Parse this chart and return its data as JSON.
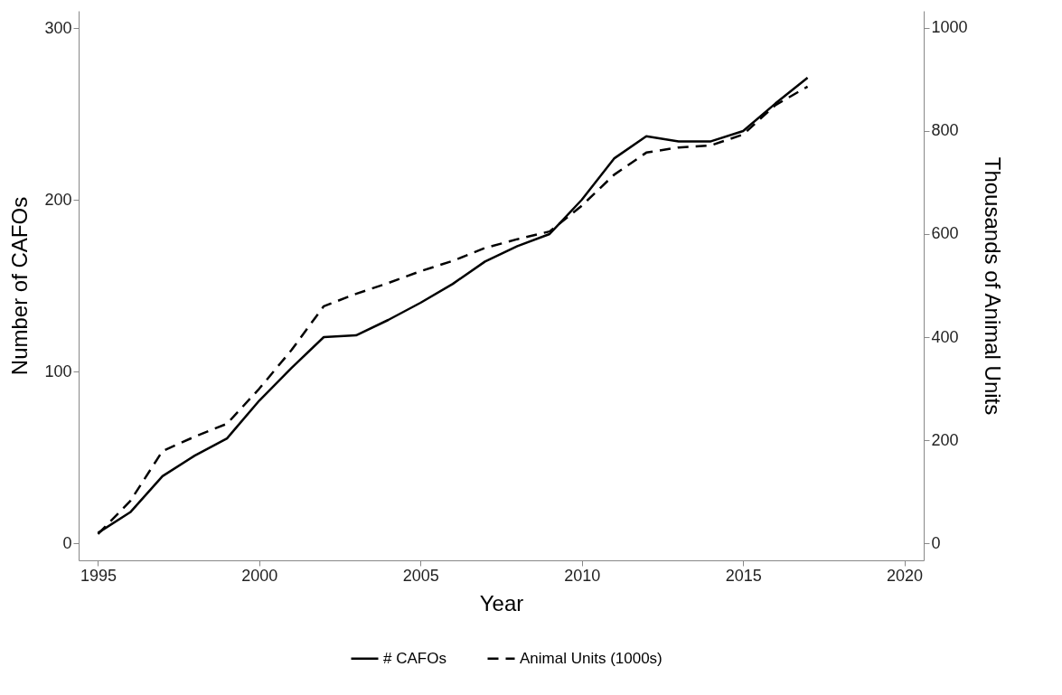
{
  "chart_data": {
    "type": "line",
    "xlabel": "Year",
    "ylabel": "Number of CAFOs",
    "y2label": "Thousands of Animal Units",
    "x": [
      1995,
      1996,
      1997,
      1998,
      1999,
      2000,
      2001,
      2002,
      2003,
      2004,
      2005,
      2006,
      2007,
      2008,
      2009,
      2010,
      2011,
      2012,
      2013,
      2014,
      2015,
      2016,
      2017
    ],
    "series": [
      {
        "name": "# CAFOs",
        "color": "#000000",
        "line_style": "solid",
        "values": [
          6,
          18,
          39,
          51,
          61,
          83,
          102,
          120,
          121,
          130,
          140,
          151,
          164,
          173,
          180,
          200,
          224,
          237,
          234,
          234,
          240,
          256,
          271
        ]
      },
      {
        "name": "Animal Units (1000s)",
        "color": "#000000",
        "line_style": "dashed",
        "axis": "y2",
        "values": [
          18,
          82,
          179,
          207,
          232,
          300,
          375,
          460,
          484,
          505,
          528,
          548,
          573,
          590,
          605,
          655,
          715,
          758,
          768,
          772,
          793,
          850,
          886
        ]
      }
    ],
    "xlim": [
      1994.4,
      2020.6
    ],
    "xticks": [
      1995,
      2000,
      2005,
      2010,
      2015,
      2020
    ],
    "ylim": [
      -10,
      310
    ],
    "yticks": [
      0,
      100,
      200,
      300
    ],
    "y2lim": [
      -33,
      1033
    ],
    "y2ticks": [
      0,
      200,
      400,
      600,
      800,
      1000
    ],
    "grid": false,
    "legend": "bottom"
  }
}
